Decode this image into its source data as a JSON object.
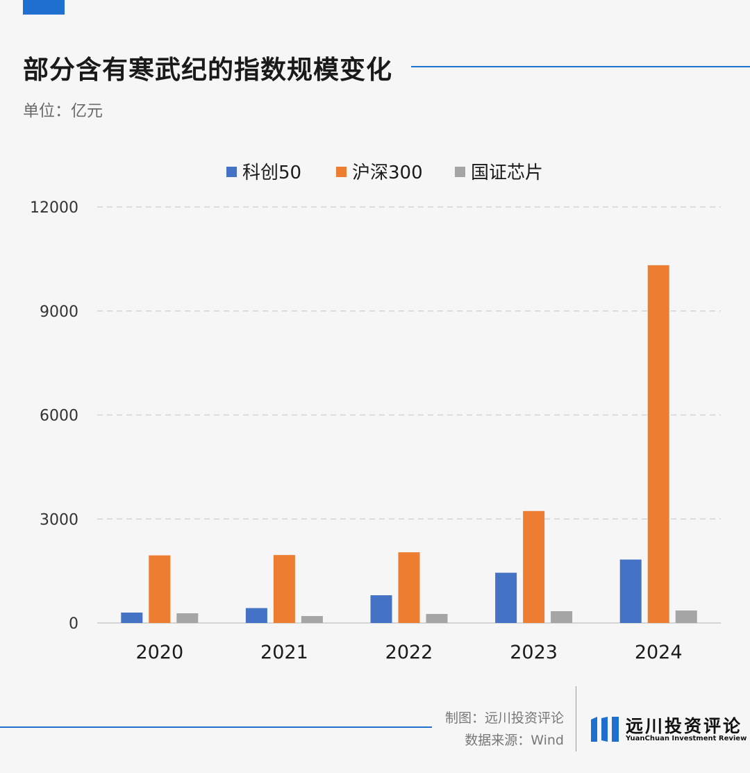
{
  "header": {
    "title": "部分含有寒武纪的指数规模变化",
    "unit": "单位：亿元"
  },
  "footer": {
    "made_by": "制图：远川投资评论",
    "source": "数据来源：Wind",
    "logo_name": "远川投资评论",
    "logo_subtitle": "YuanChuan Investment Review"
  },
  "colors": {
    "accent": "#1e6fd0",
    "series_1": "#4472c4",
    "series_2": "#ed7d31",
    "series_3": "#a5a5a5"
  },
  "chart_data": {
    "type": "bar",
    "categories": [
      "2020",
      "2021",
      "2022",
      "2023",
      "2024"
    ],
    "series": [
      {
        "name": "科创50",
        "values": [
          300,
          430,
          800,
          1450,
          1830
        ]
      },
      {
        "name": "沪深300",
        "values": [
          1950,
          1960,
          2040,
          3230,
          10320
        ]
      },
      {
        "name": "国证芯片",
        "values": [
          280,
          200,
          260,
          340,
          360
        ]
      }
    ],
    "yticks": [
      "0",
      "3000",
      "6000",
      "9000",
      "12000"
    ],
    "ylim": [
      0,
      12000
    ],
    "legend": "top-center",
    "grid": true
  }
}
